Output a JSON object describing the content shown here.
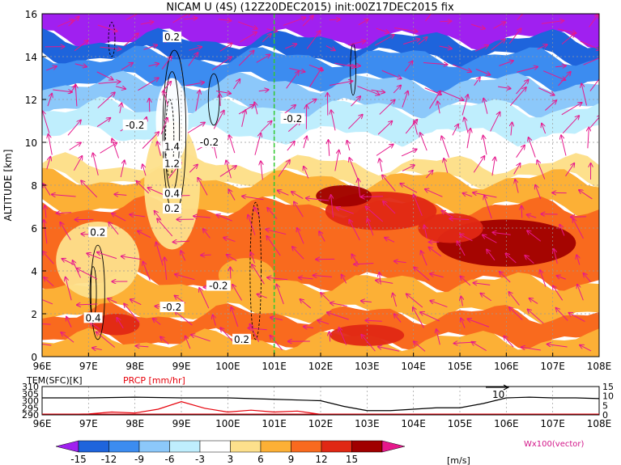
{
  "title": "NICAM U (4S) (12Z20DEC2015) init:00Z17DEC2015 fix",
  "chart_data": [
    {
      "type": "heatmap",
      "name": "zonal wind longitude-altitude section",
      "ylabel": "ALTITUDE [km]",
      "xlim": [
        96,
        108
      ],
      "ylim": [
        0,
        16
      ],
      "x_ticks": [
        "96E",
        "97E",
        "98E",
        "99E",
        "100E",
        "101E",
        "102E",
        "103E",
        "104E",
        "105E",
        "106E",
        "107E",
        "108E"
      ],
      "y_ticks": [
        "0",
        "2",
        "4",
        "6",
        "8",
        "10",
        "12",
        "14",
        "16"
      ],
      "colorbar": {
        "levels": [
          -15,
          -12,
          -9,
          -6,
          -3,
          3,
          6,
          9,
          12,
          15
        ],
        "labels": [
          "-15",
          "-12",
          "-9",
          "-6",
          "-3",
          "3",
          "6",
          "9",
          "12",
          "15"
        ],
        "colors": [
          "#a020f0",
          "#1e64dc",
          "#3c8cf0",
          "#8cc8fa",
          "#bfeefd",
          "#ffffff",
          "#fde08c",
          "#fcb036",
          "#f96a1e",
          "#e02814",
          "#a00000",
          "#e6188c"
        ],
        "unit": "[m/s]"
      },
      "bands": [
        {
          "z0": 14.8,
          "z1": 16.0,
          "color": "#a020f0"
        },
        {
          "z0": 14.0,
          "z1": 14.8,
          "color": "#1e64dc"
        },
        {
          "z0": 12.8,
          "z1": 14.0,
          "color": "#3c8cf0"
        },
        {
          "z0": 11.6,
          "z1": 12.8,
          "color": "#8cc8fa"
        },
        {
          "z0": 10.3,
          "z1": 11.6,
          "color": "#bfeefd"
        },
        {
          "z0": 9.0,
          "z1": 10.3,
          "color": "#ffffff"
        },
        {
          "z0": 8.3,
          "z1": 9.0,
          "color": "#fde08c"
        },
        {
          "z0": 7.0,
          "z1": 8.3,
          "color": "#fcb036"
        },
        {
          "z0": 3.5,
          "z1": 7.0,
          "color": "#f96a1e"
        },
        {
          "z0": 2.0,
          "z1": 3.5,
          "color": "#fcb036"
        },
        {
          "z0": 0.8,
          "z1": 2.0,
          "color": "#f96a1e"
        },
        {
          "z0": 0.0,
          "z1": 0.8,
          "color": "#fcb036"
        }
      ],
      "patches": [
        {
          "x": 106.0,
          "z": 5.3,
          "rx": 1.5,
          "rz": 1.1,
          "color": "#a00000"
        },
        {
          "x": 103.3,
          "z": 6.8,
          "rx": 1.2,
          "rz": 0.9,
          "color": "#e02814"
        },
        {
          "x": 102.5,
          "z": 7.5,
          "rx": 0.6,
          "rz": 0.5,
          "color": "#a00000"
        },
        {
          "x": 104.8,
          "z": 6.0,
          "rx": 0.7,
          "rz": 0.7,
          "color": "#e02814"
        },
        {
          "x": 98.8,
          "z": 8.0,
          "rx": 0.6,
          "rz": 3.0,
          "color": "#fde08c"
        },
        {
          "x": 98.8,
          "z": 11.0,
          "rx": 0.35,
          "rz": 2.0,
          "color": "#ffffff"
        },
        {
          "x": 97.2,
          "z": 4.5,
          "rx": 0.9,
          "rz": 1.8,
          "color": "#fde08c"
        },
        {
          "x": 100.4,
          "z": 3.8,
          "rx": 0.6,
          "rz": 0.8,
          "color": "#fcb036"
        },
        {
          "x": 103.0,
          "z": 1.0,
          "rx": 0.8,
          "rz": 0.5,
          "color": "#e02814"
        },
        {
          "x": 97.6,
          "z": 1.5,
          "rx": 0.5,
          "rz": 0.5,
          "color": "#e02814"
        }
      ],
      "contour_labels": [
        {
          "text": "0.2",
          "x": 98.8,
          "z": 14.9
        },
        {
          "text": "-0.2",
          "x": 98.0,
          "z": 10.8
        },
        {
          "text": "1.4",
          "x": 98.8,
          "z": 9.8
        },
        {
          "text": "1.2",
          "x": 98.8,
          "z": 9.0
        },
        {
          "text": "0.4",
          "x": 98.8,
          "z": 7.6
        },
        {
          "text": "0.2",
          "x": 98.8,
          "z": 6.9
        },
        {
          "text": "-0.2",
          "x": 99.6,
          "z": 10.0
        },
        {
          "text": "-0.2",
          "x": 101.4,
          "z": 11.1
        },
        {
          "text": "-0.2",
          "x": 99.8,
          "z": 3.3
        },
        {
          "text": "0.2",
          "x": 97.2,
          "z": 5.8
        },
        {
          "text": "0.4",
          "x": 97.1,
          "z": 1.8
        },
        {
          "text": "-0.2",
          "x": 98.8,
          "z": 2.3
        },
        {
          "text": "0.2",
          "x": 100.3,
          "z": 0.8
        }
      ],
      "vertical_marker_x": 101.0,
      "vector_label": "Wx100(vector)"
    },
    {
      "type": "line",
      "name": "surface temperature and precipitation",
      "xlim": [
        96,
        108
      ],
      "labels": {
        "left": "TEM(SFC)[K]",
        "right": "PRCP [mm/hr]"
      },
      "y_left_ticks": [
        "310",
        "305",
        "300",
        "295",
        "290"
      ],
      "y_right_ticks": [
        "15",
        "10",
        "5",
        "0"
      ],
      "right_value_label": "10",
      "series": [
        {
          "name": "TEM(SFC)[K]",
          "color": "#000000",
          "x": [
            96,
            97,
            98,
            99,
            100,
            101,
            102,
            102.5,
            103,
            103.5,
            104,
            104.5,
            105,
            105.5,
            106,
            106.5,
            107,
            107.5,
            108
          ],
          "y": [
            302,
            302,
            302.5,
            302,
            302,
            301,
            300,
            296,
            293,
            293,
            294,
            295,
            295,
            298,
            302,
            302.5,
            302,
            302,
            301.5
          ]
        },
        {
          "name": "PRCP [mm/hr]",
          "color": "#e6000a",
          "x": [
            96,
            97,
            97.5,
            98,
            98.5,
            99,
            99.5,
            100,
            100.5,
            101,
            101.5,
            102,
            103,
            104,
            105,
            106,
            107,
            108
          ],
          "y": [
            0,
            0.5,
            1.5,
            1.0,
            3.0,
            7.0,
            3.5,
            1.5,
            2.5,
            1.5,
            2.0,
            0.3,
            0,
            0,
            0,
            0,
            0,
            0
          ]
        }
      ],
      "x_ticks": [
        "96E",
        "97E",
        "98E",
        "99E",
        "100E",
        "101E",
        "102E",
        "103E",
        "104E",
        "105E",
        "106E",
        "107E",
        "108E"
      ]
    }
  ]
}
